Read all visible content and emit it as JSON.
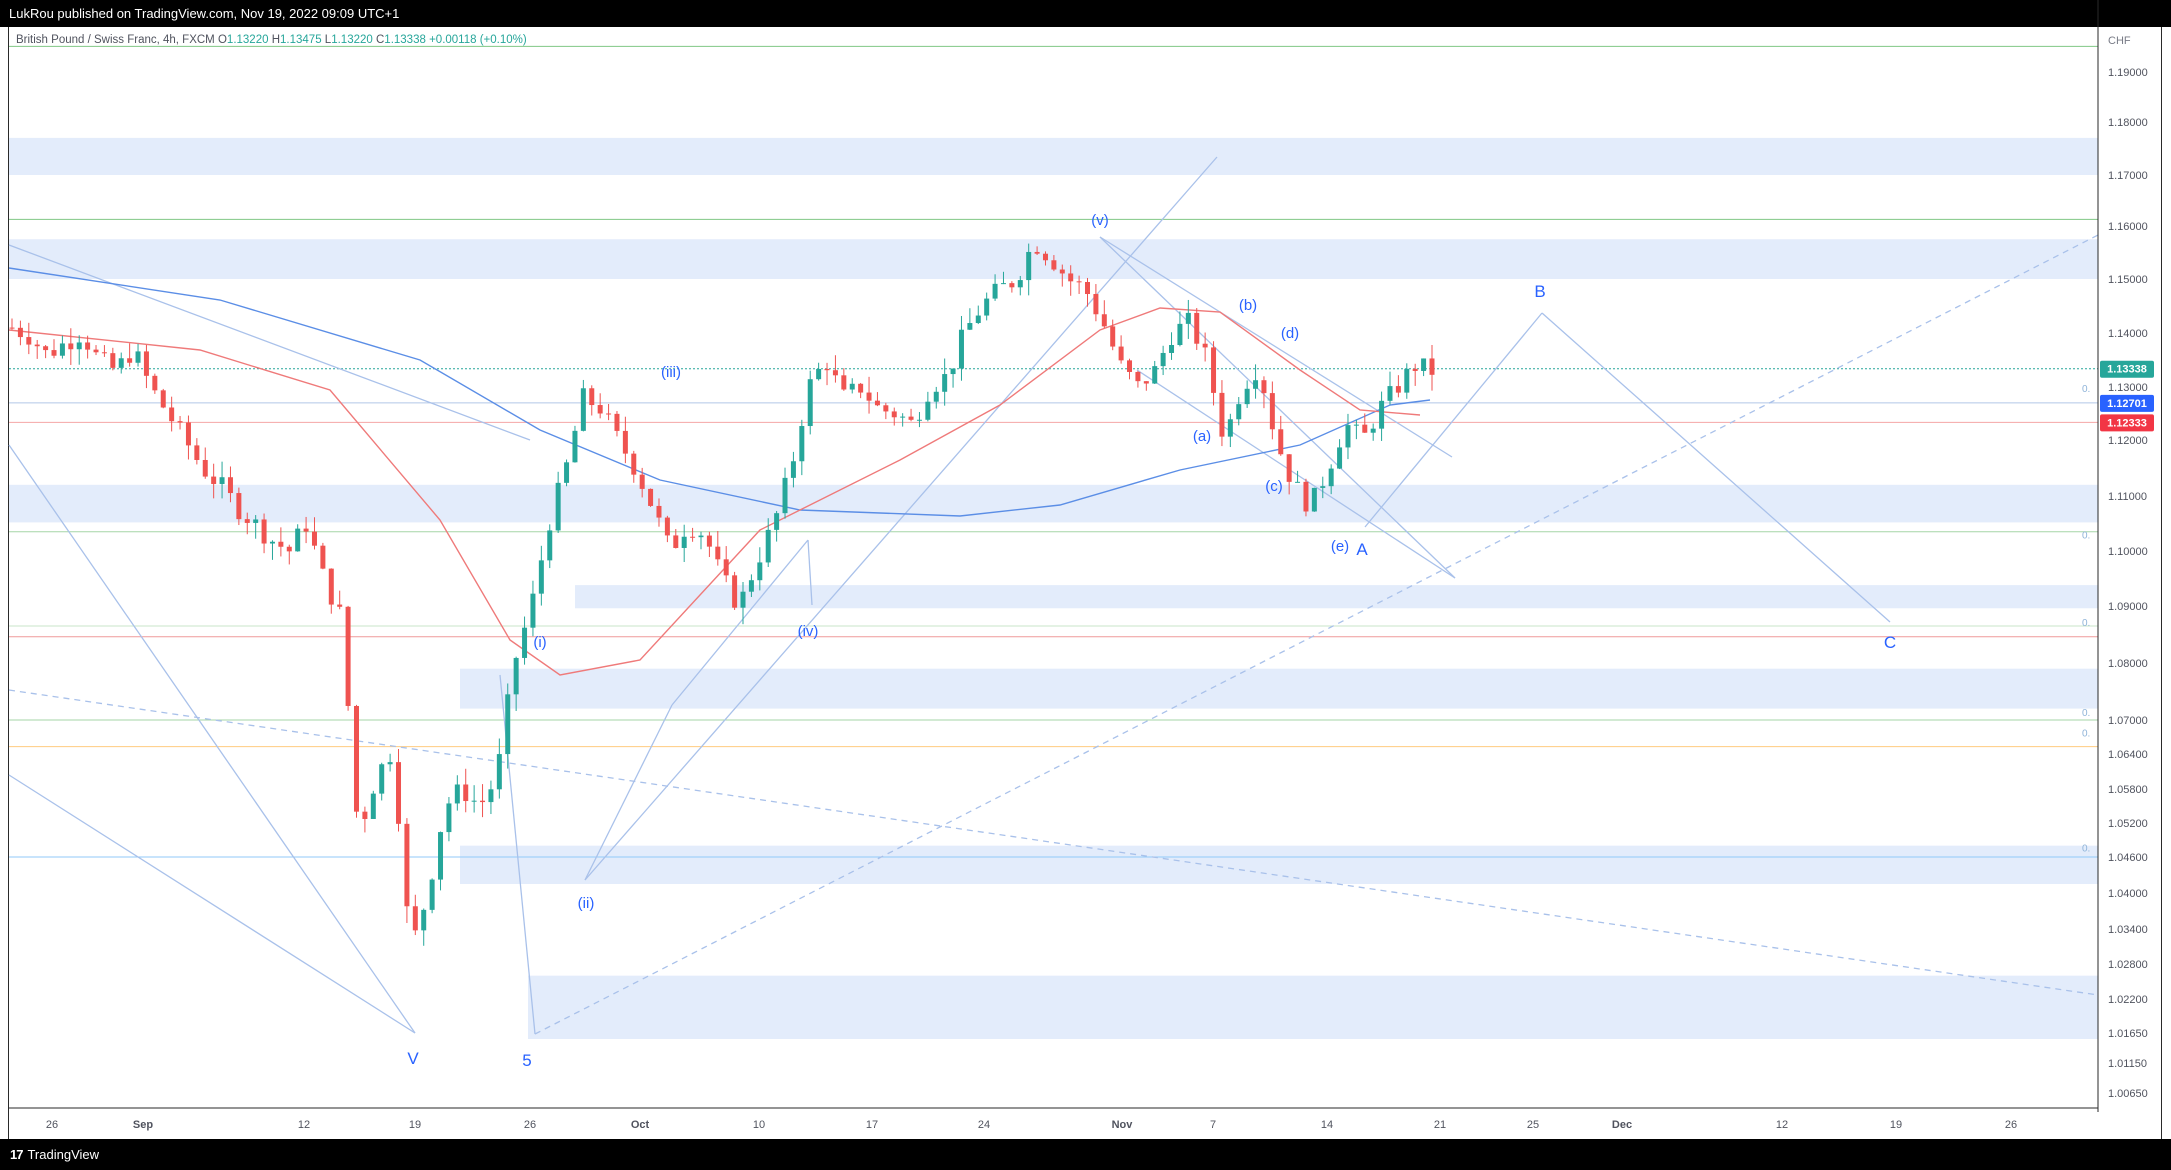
{
  "publisher": {
    "text": "LukRou published on TradingView.com, Nov 19, 2022 09:09 UTC+1"
  },
  "legend": {
    "symbol": "British Pound / Swiss Franc, 4h, FXCM",
    "open_label": "O",
    "open": "1.13220",
    "high_label": "H",
    "high": "1.13475",
    "low_label": "L",
    "low": "1.13220",
    "close_label": "C",
    "close": "1.13338",
    "change": "+0.00118 (+0.10%)"
  },
  "branding": {
    "name": "TradingView",
    "mark": "17"
  },
  "chart_data": {
    "type": "candlestick",
    "currency": "CHF",
    "y_ticks": [
      "1.19000",
      "1.18000",
      "1.17000",
      "1.16000",
      "1.15000",
      "1.14000",
      "1.13000",
      "1.12000",
      "1.11000",
      "1.10000",
      "1.09000",
      "1.08000",
      "1.07000",
      "1.06400",
      "1.05800",
      "1.05200",
      "1.04600",
      "1.04000",
      "1.03400",
      "1.02800",
      "1.02200",
      "1.01650",
      "1.01150",
      "1.00650"
    ],
    "x_ticks": [
      "26",
      "Sep",
      "12",
      "19",
      "26",
      "Oct",
      "10",
      "17",
      "24",
      "Nov",
      "7",
      "14",
      "21",
      "25",
      "Dec",
      "12",
      "19",
      "26"
    ],
    "price_badges": [
      {
        "value": "1.13338",
        "color": "#26a69a"
      },
      {
        "value": "1.12701",
        "color": "#2962ff"
      },
      {
        "value": "1.12333",
        "color": "#f23645"
      }
    ],
    "wave_labels": [
      "V",
      "5",
      "(i)",
      "(ii)",
      "(iii)",
      "(iv)",
      "(v)",
      "(a)",
      "(b)",
      "(c)",
      "(d)",
      "(e)",
      "A",
      "B",
      "C"
    ],
    "fib_labels": [
      "0.",
      "0.",
      "0.",
      "0.",
      "0.",
      "0."
    ],
    "ohlc_path": [
      1.141,
      1.1395,
      1.136,
      1.138,
      1.14,
      1.135,
      1.133,
      1.137,
      1.13,
      1.125,
      1.12,
      1.115,
      1.112,
      1.108,
      1.105,
      1.102,
      1.1,
      1.105,
      1.095,
      1.088,
      1.05,
      1.06,
      1.065,
      1.03,
      1.04,
      1.055,
      1.058,
      1.055,
      1.06,
      1.08,
      1.09,
      1.105,
      1.115,
      1.128,
      1.126,
      1.12,
      1.115,
      1.108,
      1.1,
      1.105,
      1.103,
      1.095,
      1.09,
      1.098,
      1.105,
      1.115,
      1.13,
      1.135,
      1.128,
      1.13,
      1.126,
      1.125,
      1.123,
      1.13,
      1.132,
      1.14,
      1.145,
      1.148,
      1.15,
      1.157,
      1.154,
      1.15,
      1.148,
      1.142,
      1.134,
      1.13,
      1.133,
      1.14,
      1.142,
      1.135,
      1.12,
      1.13,
      1.134,
      1.12,
      1.112,
      1.108,
      1.115,
      1.123,
      1.12,
      1.126,
      1.13,
      1.134,
      1.133
    ],
    "zones": [
      [
        1.17,
        1.177
      ],
      [
        1.15,
        1.1575
      ],
      [
        1.1052,
        1.112
      ],
      [
        1.0896,
        1.0938
      ],
      [
        1.072,
        1.079
      ],
      [
        1.0415,
        1.048
      ],
      [
        1.0155,
        1.026
      ]
    ],
    "horizontal_levels": [
      {
        "price": 1.198,
        "color": "#81c784"
      },
      {
        "price": 1.1613,
        "color": "#81c784"
      },
      {
        "price": 1.13338,
        "color": "#26a69a",
        "style": "dotted"
      },
      {
        "price": 1.12701,
        "color": "#b2c7e8"
      },
      {
        "price": 1.12333,
        "color": "#f5a6a6"
      },
      {
        "price": 1.1035,
        "color": "#a5d6a7"
      },
      {
        "price": 1.0865,
        "color": "#c8e6c9"
      },
      {
        "price": 1.0846,
        "color": "#ef9a9a"
      },
      {
        "price": 1.07,
        "color": "#a5d6a7"
      },
      {
        "price": 1.0653,
        "color": "#ffcc80"
      },
      {
        "price": 1.046,
        "color": "#90caf9"
      }
    ]
  }
}
